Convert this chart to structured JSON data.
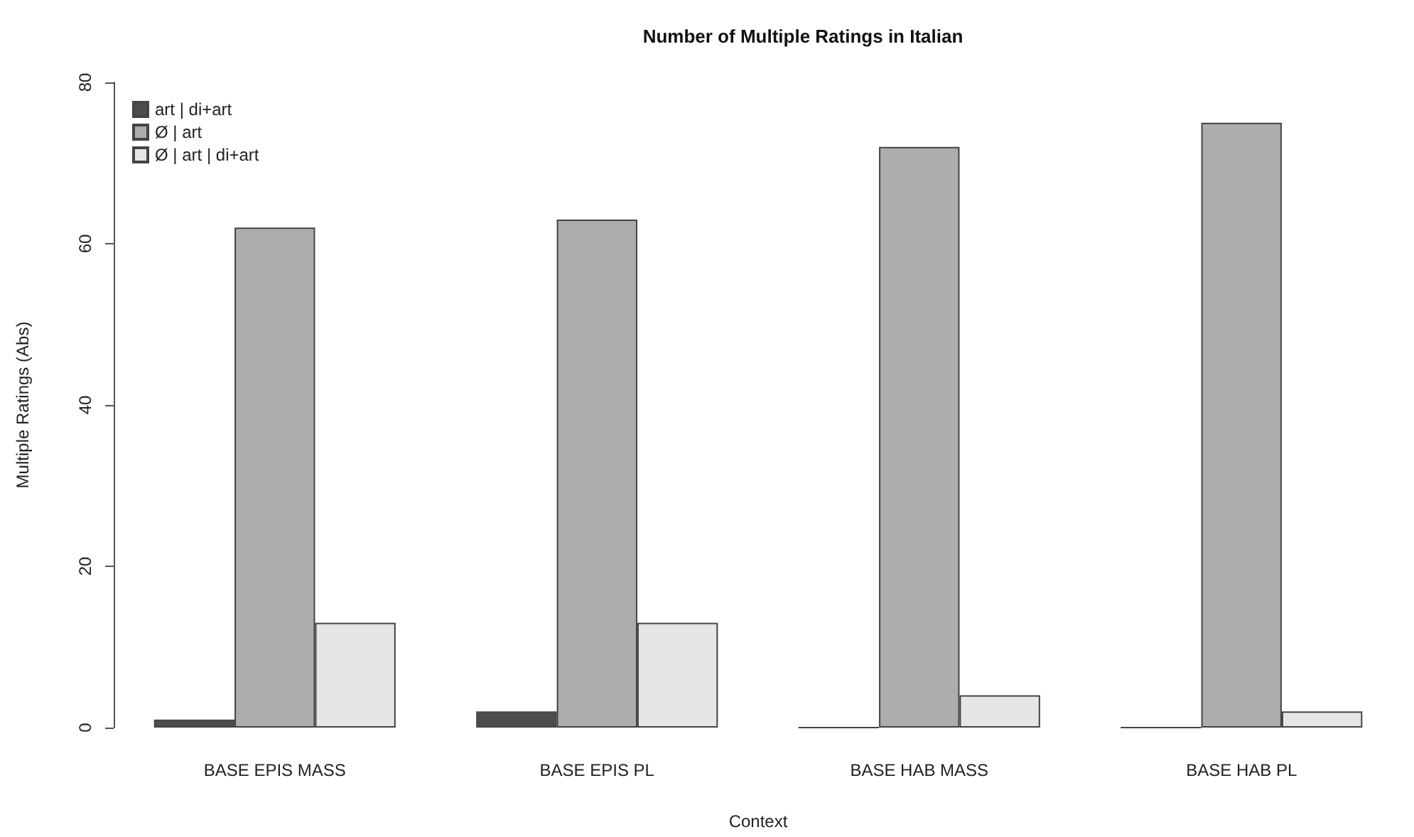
{
  "chart_data": {
    "type": "bar",
    "title": "Number of Multiple Ratings in Italian",
    "xlabel": "Context",
    "ylabel": "Multiple Ratings (Abs)",
    "categories": [
      "BASE EPIS MASS",
      "BASE EPIS PL",
      "BASE HAB MASS",
      "BASE HAB PL"
    ],
    "series": [
      {
        "name": "art | di+art",
        "color": "#4d4d4d",
        "values": [
          1,
          2,
          0,
          0
        ]
      },
      {
        "name": "Ø | art",
        "color": "#adadad",
        "values": [
          62,
          63,
          72,
          75
        ]
      },
      {
        "name": "Ø | art | di+art",
        "color": "#e6e6e6",
        "values": [
          13,
          13,
          4,
          2
        ]
      }
    ],
    "ylim": [
      0,
      80
    ],
    "yticks": [
      0,
      20,
      40,
      60,
      80
    ],
    "grid": false,
    "legend": "top left"
  }
}
